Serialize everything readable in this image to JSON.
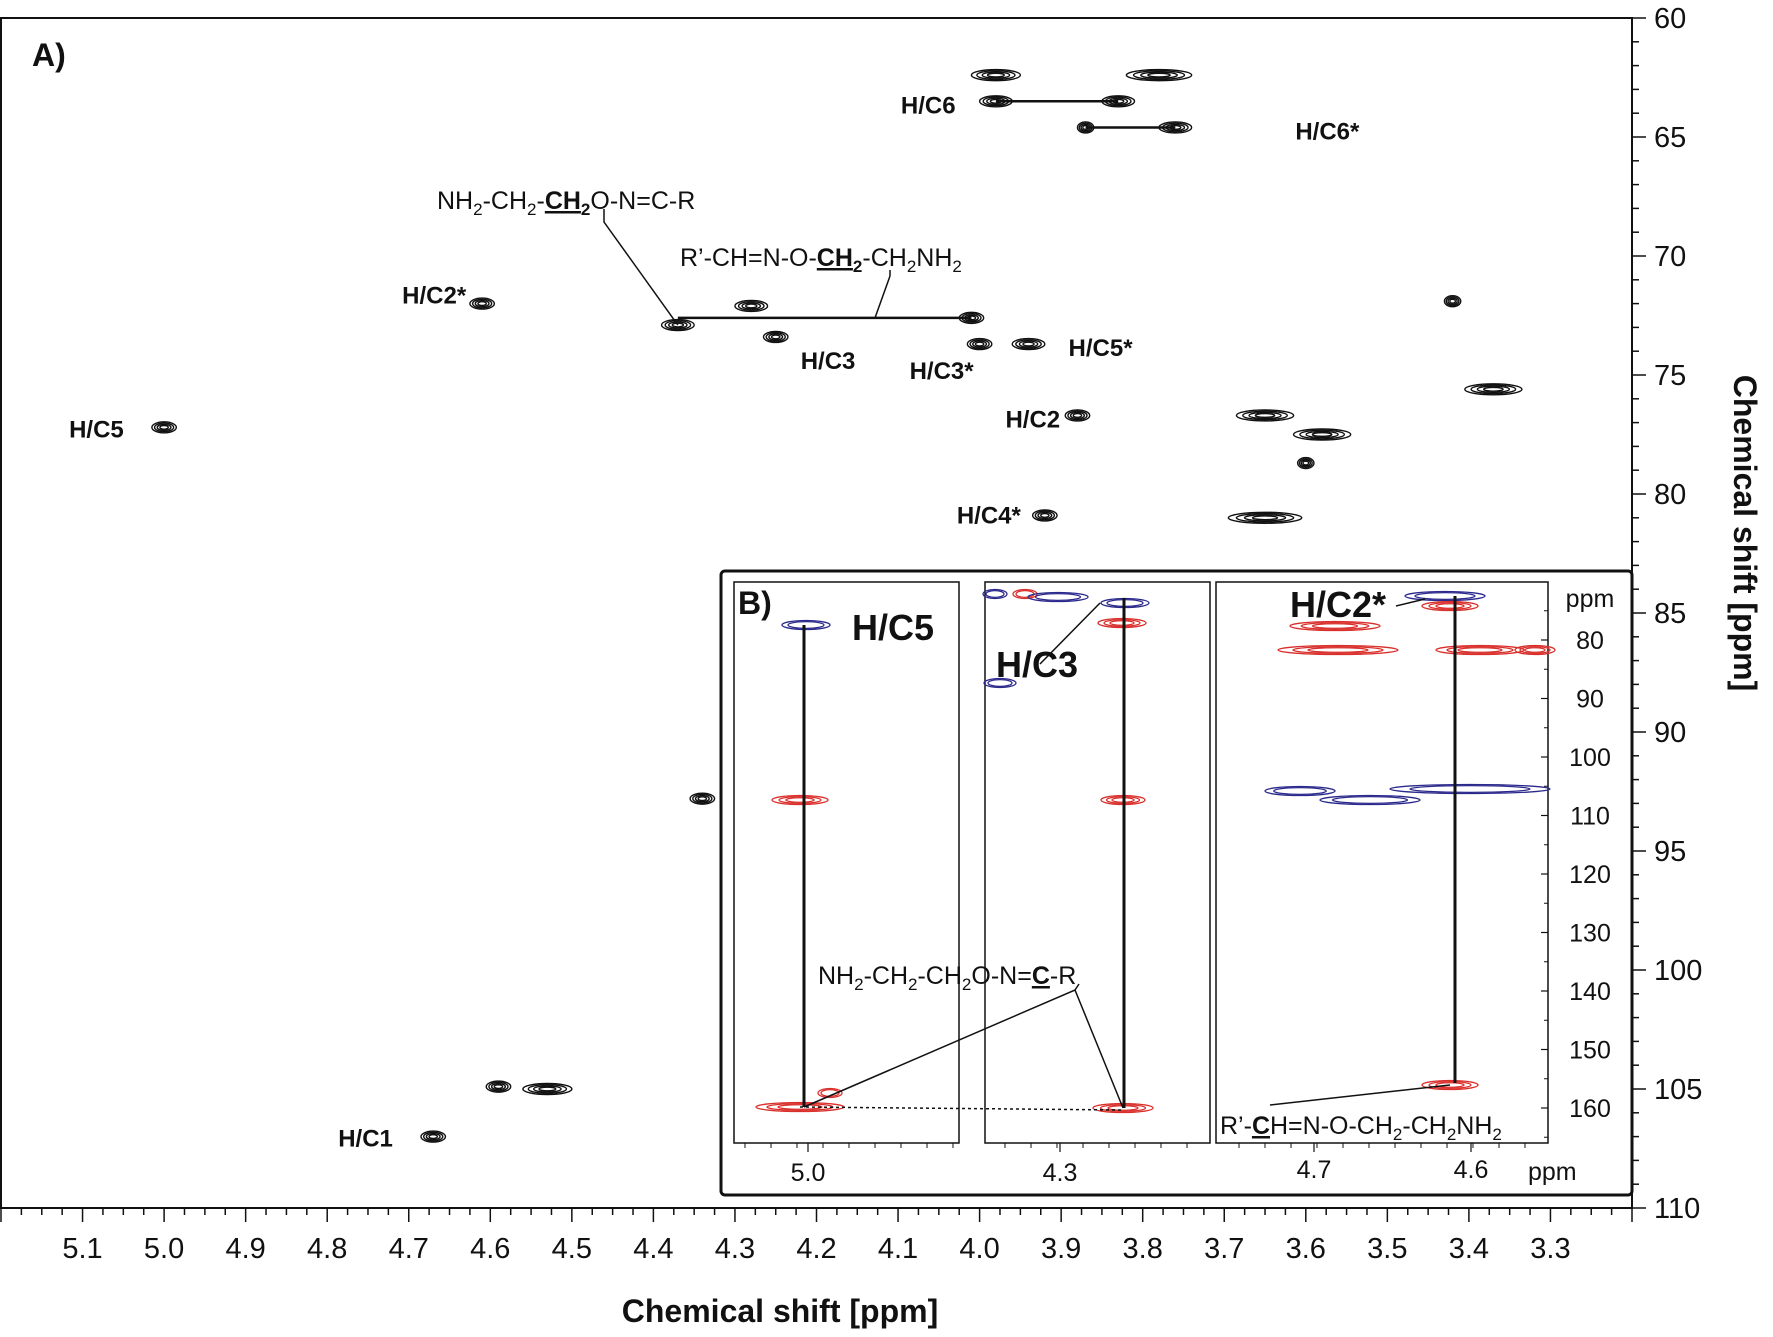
{
  "chart_data": [
    {
      "type": "scatter",
      "panel_label": "A)",
      "xlabel": "Chemical shift [ppm]",
      "ylabel": "Chemical shift [ppm]",
      "xlim": [
        5.2,
        3.2
      ],
      "ylim": [
        60,
        110
      ],
      "x_ticks": [
        "5.1",
        "5.0",
        "4.9",
        "4.8",
        "4.7",
        "4.6",
        "4.5",
        "4.4",
        "4.3",
        "4.2",
        "4.1",
        "4.0",
        "3.9",
        "3.8",
        "3.7",
        "3.6",
        "3.5",
        "3.4",
        "3.3"
      ],
      "y_ticks": [
        "60",
        "65",
        "70",
        "75",
        "80",
        "85",
        "90",
        "95",
        "100",
        "105",
        "110"
      ],
      "peaks": [
        {
          "x": 3.98,
          "y": 62.4,
          "w": 0.06,
          "label": ""
        },
        {
          "x": 3.78,
          "y": 62.4,
          "w": 0.08,
          "label": ""
        },
        {
          "x": 3.98,
          "y": 63.5,
          "w": 0.04,
          "label": "H/C6"
        },
        {
          "x": 3.83,
          "y": 63.5,
          "w": 0.04,
          "label": ""
        },
        {
          "x": 3.87,
          "y": 64.6,
          "w": 0.02,
          "label": ""
        },
        {
          "x": 3.76,
          "y": 64.6,
          "w": 0.04,
          "label": "H/C6*"
        },
        {
          "x": 4.61,
          "y": 72.0,
          "w": 0.03,
          "label": "H/C2*"
        },
        {
          "x": 4.28,
          "y": 72.1,
          "w": 0.04,
          "label": ""
        },
        {
          "x": 4.37,
          "y": 72.9,
          "w": 0.04,
          "label": ""
        },
        {
          "x": 4.01,
          "y": 72.6,
          "w": 0.03,
          "label": ""
        },
        {
          "x": 4.25,
          "y": 73.4,
          "w": 0.03,
          "label": "H/C3"
        },
        {
          "x": 4.0,
          "y": 73.7,
          "w": 0.03,
          "label": "H/C3*"
        },
        {
          "x": 3.94,
          "y": 73.7,
          "w": 0.04,
          "label": "H/C5*"
        },
        {
          "x": 3.42,
          "y": 71.9,
          "w": 0.02,
          "label": ""
        },
        {
          "x": 3.37,
          "y": 75.6,
          "w": 0.07,
          "label": ""
        },
        {
          "x": 5.0,
          "y": 77.2,
          "w": 0.03,
          "label": "H/C5"
        },
        {
          "x": 3.88,
          "y": 76.7,
          "w": 0.03,
          "label": "H/C2"
        },
        {
          "x": 3.65,
          "y": 76.7,
          "w": 0.07,
          "label": ""
        },
        {
          "x": 3.58,
          "y": 77.5,
          "w": 0.07,
          "label": ""
        },
        {
          "x": 3.6,
          "y": 78.7,
          "w": 0.02,
          "label": ""
        },
        {
          "x": 3.92,
          "y": 80.9,
          "w": 0.03,
          "label": "H/C4*"
        },
        {
          "x": 3.65,
          "y": 81.0,
          "w": 0.09,
          "label": ""
        },
        {
          "x": 4.34,
          "y": 92.8,
          "w": 0.03,
          "label": ""
        },
        {
          "x": 4.59,
          "y": 104.9,
          "w": 0.03,
          "label": ""
        },
        {
          "x": 4.53,
          "y": 105.0,
          "w": 0.06,
          "label": ""
        },
        {
          "x": 4.67,
          "y": 107.0,
          "w": 0.03,
          "label": "H/C1"
        }
      ],
      "annotations": {
        "formula_top": {
          "pre": "NH",
          "s1": "2",
          "mid1": "-CH",
          "s2": "2",
          "dash": "-",
          "bold": "CH",
          "bsub": "2",
          "post": "O-N=C-R"
        },
        "formula_mid": {
          "pre": "R’-CH=N-O-",
          "bold": "CH",
          "bsub": "2",
          "mid": "-CH",
          "s1": "2",
          "nh": "NH",
          "s2": "2"
        },
        "ch2_link_y": 72.6
      }
    },
    {
      "type": "scatter",
      "panel_label": "B)",
      "subpanels": [
        {
          "x_tick": "5.0",
          "label": "H/C5"
        },
        {
          "x_tick": "4.3",
          "label": "H/C3"
        },
        {
          "x_ticks": [
            "4.7",
            "4.6"
          ],
          "label": "H/C2*"
        }
      ],
      "x_unit": "ppm",
      "y_unit": "ppm",
      "y_ticks": [
        "80",
        "90",
        "100",
        "110",
        "120",
        "130",
        "140",
        "150",
        "160"
      ],
      "formula_left": {
        "pre": "NH",
        "s1": "2",
        "m1": "-CH",
        "s2": "2",
        "m2": "-CH",
        "s3": "2",
        "m3": "O-N=",
        "bold": "C",
        "post": "-R"
      },
      "formula_right": {
        "pre": "R’-",
        "bold": "C",
        "m1": "H=N-O-CH",
        "s1": "2",
        "m2": "-CH",
        "s2": "2",
        "m3": "NH",
        "s3": "2"
      },
      "colors": {
        "positive": "#d9302c",
        "negative": "#2b2a8c",
        "contour": "#111111"
      }
    }
  ]
}
